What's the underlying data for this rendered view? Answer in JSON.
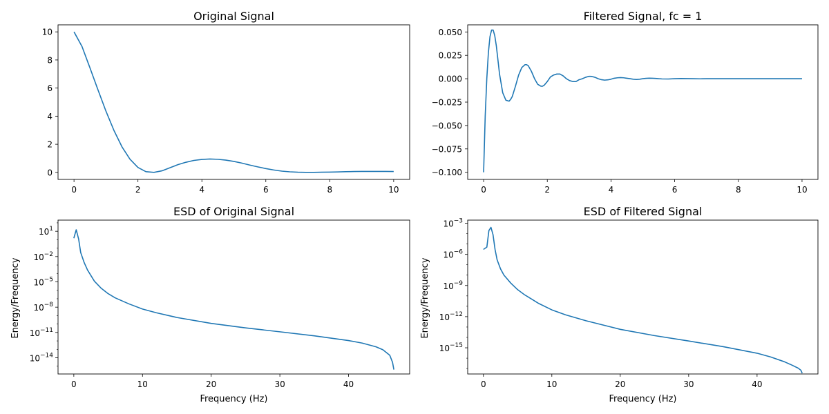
{
  "figure": {
    "background": "#ffffff",
    "line_color": "#1f77b4"
  },
  "chart_data": [
    {
      "id": "original-signal",
      "type": "line",
      "title": "Original Signal",
      "xlabel": "",
      "ylabel": "",
      "yscale": "linear",
      "xlim": [
        -0.5,
        10.5
      ],
      "ylim": [
        -0.5,
        10.5
      ],
      "xticks": [
        0,
        2,
        4,
        6,
        8,
        10
      ],
      "xtick_labels": [
        "0",
        "2",
        "4",
        "6",
        "8",
        "10"
      ],
      "yticks": [
        0,
        2,
        4,
        6,
        8,
        10
      ],
      "ytick_labels": [
        "0",
        "2",
        "4",
        "6",
        "8",
        "10"
      ],
      "grid": false,
      "series": [
        {
          "x": [
            0,
            0.25,
            0.5,
            0.75,
            1,
            1.25,
            1.5,
            1.75,
            2,
            2.25,
            2.5,
            2.75,
            3,
            3.25,
            3.5,
            3.75,
            4,
            4.25,
            4.5,
            4.75,
            5,
            5.25,
            5.5,
            5.75,
            6,
            6.25,
            6.5,
            6.75,
            7,
            7.25,
            7.5,
            7.75,
            8,
            8.25,
            8.5,
            8.75,
            9,
            9.25,
            9.5,
            9.75,
            10
          ],
          "y": [
            10.0,
            8.96,
            7.43,
            5.87,
            4.35,
            2.98,
            1.82,
            0.94,
            0.35,
            0.05,
            0.0,
            0.11,
            0.33,
            0.55,
            0.72,
            0.85,
            0.92,
            0.95,
            0.93,
            0.87,
            0.78,
            0.66,
            0.52,
            0.39,
            0.27,
            0.17,
            0.09,
            0.04,
            0.01,
            0.0,
            0.0,
            0.01,
            0.02,
            0.03,
            0.05,
            0.06,
            0.07,
            0.07,
            0.07,
            0.07,
            0.06
          ]
        }
      ]
    },
    {
      "id": "filtered-signal",
      "type": "line",
      "title": "Filtered Signal, fc = 1",
      "xlabel": "",
      "ylabel": "",
      "yscale": "linear",
      "xlim": [
        -0.5,
        10.5
      ],
      "ylim": [
        -0.1076,
        0.0576
      ],
      "xticks": [
        0,
        2,
        4,
        6,
        8,
        10
      ],
      "xtick_labels": [
        "0",
        "2",
        "4",
        "6",
        "8",
        "10"
      ],
      "yticks": [
        -0.1,
        -0.075,
        -0.05,
        -0.025,
        0.0,
        0.025,
        0.05
      ],
      "ytick_labels": [
        "−0.100",
        "−0.075",
        "−0.050",
        "−0.025",
        "0.000",
        "0.025",
        "0.050"
      ],
      "grid": false,
      "series": [
        {
          "x": [
            0,
            0.05,
            0.1,
            0.15,
            0.2,
            0.25,
            0.3,
            0.35,
            0.4,
            0.45,
            0.5,
            0.6,
            0.7,
            0.8,
            0.85,
            0.9,
            1.0,
            1.1,
            1.2,
            1.3,
            1.35,
            1.4,
            1.5,
            1.6,
            1.7,
            1.8,
            1.85,
            1.9,
            2.0,
            2.1,
            2.2,
            2.3,
            2.35,
            2.4,
            2.5,
            2.6,
            2.7,
            2.8,
            2.85,
            2.9,
            3.0,
            3.1,
            3.2,
            3.3,
            3.35,
            3.4,
            3.5,
            3.6,
            3.7,
            3.8,
            3.9,
            4.0,
            4.1,
            4.2,
            4.3,
            4.4,
            4.5,
            4.6,
            4.7,
            4.8,
            4.9,
            5.0,
            5.1,
            5.2,
            5.3,
            5.4,
            5.5,
            5.6,
            5.8,
            6.0,
            6.2,
            6.4,
            6.6,
            6.8,
            7.0,
            7.5,
            8.0,
            8.5,
            9.0,
            9.5,
            10.0
          ],
          "y": [
            -0.1,
            -0.04,
            0.0,
            0.028,
            0.045,
            0.052,
            0.052,
            0.046,
            0.035,
            0.02,
            0.005,
            -0.015,
            -0.023,
            -0.024,
            -0.022,
            -0.019,
            -0.008,
            0.004,
            0.012,
            0.015,
            0.015,
            0.014,
            0.008,
            0.0,
            -0.006,
            -0.008,
            -0.008,
            -0.007,
            -0.003,
            0.002,
            0.004,
            0.005,
            0.005,
            0.005,
            0.003,
            0.0,
            -0.002,
            -0.003,
            -0.003,
            -0.003,
            -0.001,
            0.0,
            0.0015,
            0.0025,
            0.0025,
            0.0024,
            0.0015,
            0.0,
            -0.001,
            -0.0015,
            -0.0012,
            -0.0005,
            0.0005,
            0.001,
            0.0012,
            0.001,
            0.0005,
            0.0,
            -0.0005,
            -0.0008,
            -0.0005,
            0.0,
            0.0004,
            0.0006,
            0.0005,
            0.0003,
            0.0,
            -0.0002,
            -0.0003,
            0.0,
            0.0002,
            0.0001,
            0.0,
            -0.0001,
            0.0,
            0.0,
            0.0,
            0.0,
            0.0,
            0.0,
            0.0
          ]
        }
      ]
    },
    {
      "id": "esd-original",
      "type": "line",
      "title": "ESD of Original Signal",
      "xlabel": "Frequency (Hz)",
      "ylabel": "Energy/Frequency",
      "yscale": "log",
      "xlim": [
        -2.3,
        48.9
      ],
      "ylim": [
        1.2e-16,
        210
      ],
      "xticks": [
        0,
        10,
        20,
        30,
        40
      ],
      "xtick_labels": [
        "0",
        "10",
        "20",
        "30",
        "40"
      ],
      "yticks": [
        1e-14,
        1e-11,
        1e-08,
        1e-05,
        0.01,
        10
      ],
      "ytick_labels": [
        {
          "base": "10",
          "exp": "−14"
        },
        {
          "base": "10",
          "exp": "−11"
        },
        {
          "base": "10",
          "exp": "−8"
        },
        {
          "base": "10",
          "exp": "−5"
        },
        {
          "base": "10",
          "exp": "−2"
        },
        {
          "base": "10",
          "exp": "1"
        }
      ],
      "grid": false,
      "series": [
        {
          "x": [
            0,
            0.35,
            0.7,
            1.0,
            1.5,
            2,
            3,
            4,
            5,
            6,
            8,
            10,
            12,
            15,
            20,
            25,
            30,
            35,
            40,
            42,
            44,
            45,
            46,
            46.4,
            46.6
          ],
          "y": [
            1.5,
            15,
            1.2,
            0.03,
            0.002,
            0.00025,
            1.2e-05,
            1.7e-06,
            4e-07,
            1.3e-07,
            2.5e-08,
            6e-09,
            2.2e-09,
            6e-10,
            1.2e-10,
            3.5e-11,
            1.2e-11,
            4e-12,
            1.1e-12,
            5.5e-13,
            2e-13,
            9e-14,
            2e-14,
            3e-15,
            4e-16
          ]
        }
      ]
    },
    {
      "id": "esd-filtered",
      "type": "line",
      "title": "ESD of Filtered Signal",
      "xlabel": "Frequency (Hz)",
      "ylabel": "Energy/Frequency",
      "yscale": "log",
      "xlim": [
        -2.3,
        48.9
      ],
      "ylim": [
        3e-18,
        0.002
      ],
      "xticks": [
        0,
        10,
        20,
        30,
        40
      ],
      "xtick_labels": [
        "0",
        "10",
        "20",
        "30",
        "40"
      ],
      "yticks": [
        1e-15,
        1e-12,
        1e-09,
        1e-06,
        0.001
      ],
      "ytick_labels": [
        {
          "base": "10",
          "exp": "−15"
        },
        {
          "base": "10",
          "exp": "−12"
        },
        {
          "base": "10",
          "exp": "−9"
        },
        {
          "base": "10",
          "exp": "−6"
        },
        {
          "base": "10",
          "exp": "−3"
        }
      ],
      "grid": false,
      "series": [
        {
          "x": [
            0,
            0.5,
            0.8,
            1.1,
            1.4,
            1.7,
            2,
            2.5,
            3,
            4,
            5,
            6,
            8,
            10,
            12,
            15,
            20,
            25,
            30,
            35,
            40,
            42,
            44,
            45,
            46,
            46.4,
            46.6
          ],
          "y": [
            3e-06,
            5e-06,
            0.0002,
            0.0004,
            8e-05,
            3e-06,
            3e-07,
            4e-08,
            1e-08,
            1.7e-09,
            4e-10,
            1.3e-10,
            2e-11,
            4.5e-12,
            1.5e-12,
            4e-13,
            6e-14,
            1.5e-14,
            4.5e-15,
            1.3e-15,
            3e-16,
            1.3e-16,
            4.5e-17,
            2.3e-17,
            1.1e-17,
            7e-18,
            3.5e-18
          ]
        }
      ]
    }
  ]
}
